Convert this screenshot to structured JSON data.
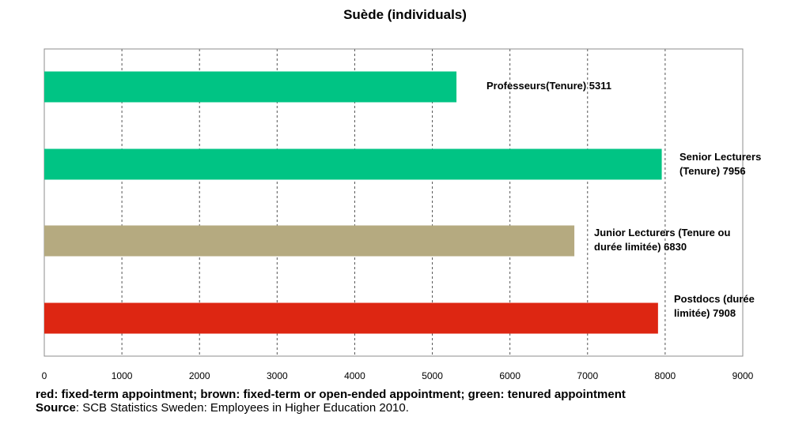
{
  "chart_data": {
    "type": "bar",
    "orientation": "horizontal",
    "title": "Suède (individuals)",
    "categories": [
      "Professeurs(Tenure) 5311",
      "Senior Lecturers (Tenure) 7956",
      "Junior Lecturers (Tenure ou durée limitée) 6830",
      "Postdocs (durée limitée) 7908"
    ],
    "values": [
      5311,
      7956,
      6830,
      7908
    ],
    "colors": [
      "#00c484",
      "#00c484",
      "#b5aa80",
      "#dd2612"
    ],
    "xlim": [
      0,
      9000
    ],
    "xticks": [
      "0",
      "1000",
      "2000",
      "3000",
      "4000",
      "5000",
      "6000",
      "7000",
      "8000",
      "9000"
    ],
    "grid": "vertical-dashed"
  },
  "labels": [
    {
      "lines": [
        "Professeurs(Tenure) 5311"
      ]
    },
    {
      "lines": [
        "Senior Lecturers",
        "(Tenure) 7956"
      ]
    },
    {
      "lines": [
        "Junior Lecturers (Tenure ou",
        "durée limitée) 6830"
      ]
    },
    {
      "lines": [
        "Postdocs (durée",
        "limitée) 7908"
      ]
    }
  ],
  "footnote": {
    "legend": "red: fixed-term appointment; brown: fixed-term or open-ended appointment; green: tenured appointment",
    "source_key": "Source",
    "source_text": ": SCB Statistics Sweden: Employees in Higher Education 2010."
  }
}
